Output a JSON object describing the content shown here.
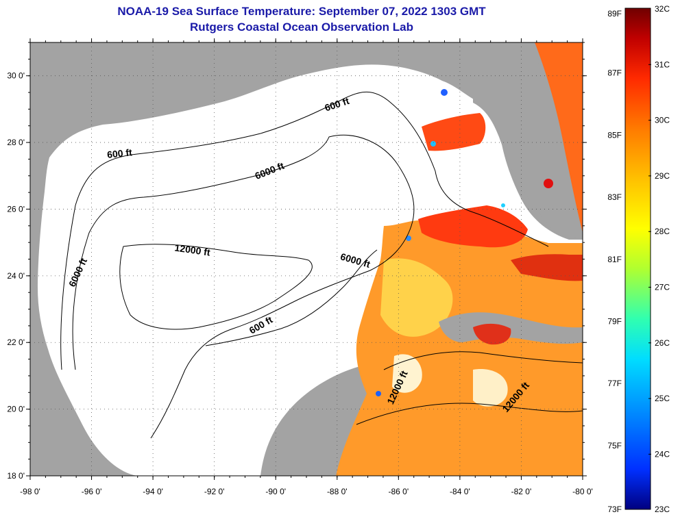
{
  "title": {
    "line1": "NOAA-19 Sea Surface Temperature:  September 07, 2022 1303 GMT",
    "line2": "Rutgers Coastal Ocean Observation Lab"
  },
  "map": {
    "lat_labels": [
      "30 0'",
      "28 0'",
      "26 0'",
      "24 0'",
      "22 0'",
      "20 0'",
      "18 0'"
    ],
    "lon_labels": [
      "-98 0'",
      "-96 0'",
      "-94 0'",
      "-92 0'",
      "-90 0'",
      "-88 0'",
      "-86 0'",
      "-84 0'",
      "-82 0'",
      "-80 0'"
    ],
    "lat_range": [
      18,
      31
    ],
    "lon_range": [
      -98,
      -80
    ],
    "contour_labels": [
      "600 ft",
      "600 ft",
      "6000 ft",
      "12000 ft",
      "6000 ft",
      "6000 ft",
      "600 ft",
      "12000 ft",
      "12000 ft"
    ],
    "colors": {
      "land": "#a3a3a3",
      "no_data": "#ffffff",
      "grid": "#555555"
    }
  },
  "colorbar": {
    "fahrenheit": [
      "89F",
      "87F",
      "85F",
      "83F",
      "81F",
      "79F",
      "77F",
      "75F",
      "73F"
    ],
    "celsius": [
      "32C",
      "31C",
      "30C",
      "29C",
      "28C",
      "27C",
      "26C",
      "25C",
      "24C",
      "23C"
    ],
    "range_c": [
      23,
      32
    ],
    "stops": [
      "#000080",
      "#0020ff",
      "#00a0ff",
      "#00ffff",
      "#40ff80",
      "#c0ff20",
      "#ffff00",
      "#ffc000",
      "#ff7000",
      "#ff2000",
      "#c00000",
      "#800000"
    ]
  }
}
